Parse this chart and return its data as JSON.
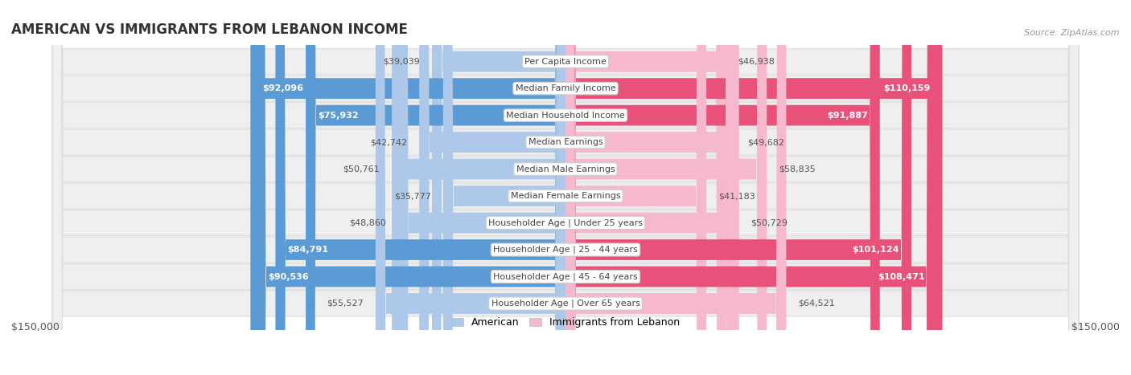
{
  "title": "AMERICAN VS IMMIGRANTS FROM LEBANON INCOME",
  "source": "Source: ZipAtlas.com",
  "categories": [
    "Per Capita Income",
    "Median Family Income",
    "Median Household Income",
    "Median Earnings",
    "Median Male Earnings",
    "Median Female Earnings",
    "Householder Age | Under 25 years",
    "Householder Age | 25 - 44 years",
    "Householder Age | 45 - 64 years",
    "Householder Age | Over 65 years"
  ],
  "american_values": [
    39039,
    92096,
    75932,
    42742,
    50761,
    35777,
    48860,
    84791,
    90536,
    55527
  ],
  "immigrant_values": [
    46938,
    110159,
    91887,
    49682,
    58835,
    41183,
    50729,
    101124,
    108471,
    64521
  ],
  "american_labels": [
    "$39,039",
    "$92,096",
    "$75,932",
    "$42,742",
    "$50,761",
    "$35,777",
    "$48,860",
    "$84,791",
    "$90,536",
    "$55,527"
  ],
  "immigrant_labels": [
    "$46,938",
    "$110,159",
    "$91,887",
    "$49,682",
    "$58,835",
    "$41,183",
    "$50,729",
    "$101,124",
    "$108,471",
    "$64,521"
  ],
  "american_color_light": "#adc8e8",
  "american_color_dark": "#5b9bd5",
  "immigrant_color_light": "#f5b8cc",
  "immigrant_color_dark": "#e8517a",
  "max_value": 150000,
  "xlabel_left": "$150,000",
  "xlabel_right": "$150,000",
  "legend_american": "American",
  "legend_immigrant": "Immigrants from Lebanon",
  "background_color": "#ffffff",
  "row_bg_color": "#efefef",
  "row_bg_border": "#dddddd",
  "title_fontsize": 12,
  "label_fontsize": 8,
  "category_fontsize": 8,
  "threshold_american": 70000,
  "threshold_immigrant": 70000
}
